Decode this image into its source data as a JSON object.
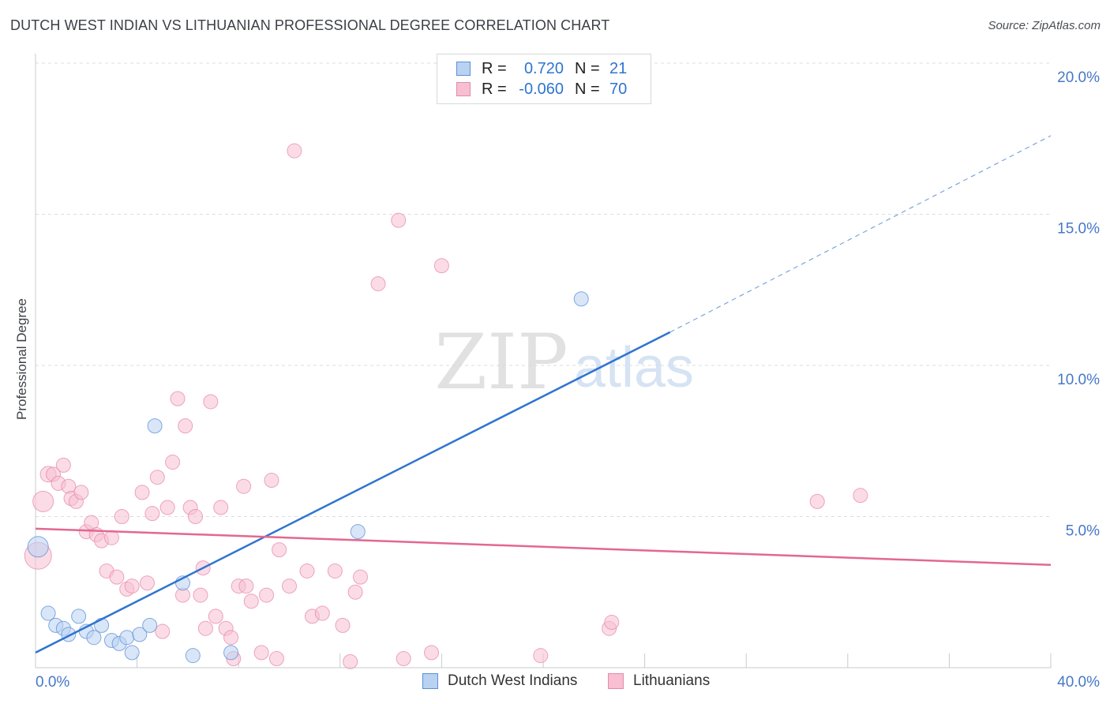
{
  "title": "DUTCH WEST INDIAN VS LITHUANIAN PROFESSIONAL DEGREE CORRELATION CHART",
  "source": "Source: ZipAtlas.com",
  "watermark": {
    "zip": "ZIP",
    "atlas": "atlas"
  },
  "colors": {
    "blue": "#2f74d0",
    "blue_fill": "#b9d2f2",
    "pink": "#e2688f",
    "pink_fill": "#f7bfd1",
    "axis_text": "#4678c8",
    "grid": "#dcdde0"
  },
  "legend": {
    "blue": {
      "r_label": "R =",
      "r_value": "0.720",
      "n_label": "N =",
      "n_value": "21"
    },
    "pink": {
      "r_label": "R =",
      "r_value": "-0.060",
      "n_label": "N =",
      "n_value": "70"
    }
  },
  "bottom_legend": [
    "Dutch West Indians",
    "Lithuanians"
  ],
  "chart_data": {
    "type": "scatter",
    "xlabel": "",
    "ylabel": "Professional Degree",
    "xlim": [
      0,
      40
    ],
    "ylim": [
      0,
      20
    ],
    "x_tick_labels": [
      "0.0%",
      "40.0%"
    ],
    "y_ticks": [
      5,
      10,
      15,
      20
    ],
    "y_tick_labels": [
      "5.0%",
      "10.0%",
      "15.0%",
      "20.0%"
    ],
    "grid": true,
    "series": [
      {
        "name": "Dutch West Indians",
        "color": "#2f74d0",
        "points": [
          [
            0.1,
            4.0,
            13
          ],
          [
            0.5,
            1.8,
            9
          ],
          [
            0.8,
            1.4,
            9
          ],
          [
            1.1,
            1.3,
            9
          ],
          [
            1.3,
            1.1,
            9
          ],
          [
            1.7,
            1.7,
            9
          ],
          [
            2.0,
            1.2,
            9
          ],
          [
            2.3,
            1.0,
            9
          ],
          [
            2.6,
            1.4,
            9
          ],
          [
            3.0,
            0.9,
            9
          ],
          [
            3.3,
            0.8,
            9
          ],
          [
            3.6,
            1.0,
            9
          ],
          [
            3.8,
            0.5,
            9
          ],
          [
            4.1,
            1.1,
            9
          ],
          [
            4.5,
            1.4,
            9
          ],
          [
            4.7,
            8.0,
            9
          ],
          [
            5.8,
            2.8,
            9
          ],
          [
            6.2,
            0.4,
            9
          ],
          [
            7.7,
            0.5,
            9
          ],
          [
            12.7,
            4.5,
            9
          ],
          [
            21.5,
            12.2,
            9
          ]
        ],
        "trend": {
          "x0": 0,
          "y0": 0.5,
          "x1": 25,
          "y1": 11.1,
          "dash_to_x": 40,
          "dash_to_y": 17.6
        }
      },
      {
        "name": "Lithuanians",
        "color": "#e2688f",
        "points": [
          [
            0.1,
            3.7,
            17
          ],
          [
            0.3,
            5.5,
            13
          ],
          [
            0.5,
            6.4,
            10
          ],
          [
            0.7,
            6.4,
            9
          ],
          [
            0.9,
            6.1,
            9
          ],
          [
            1.1,
            6.7,
            9
          ],
          [
            1.3,
            6.0,
            9
          ],
          [
            1.4,
            5.6,
            9
          ],
          [
            1.6,
            5.5,
            9
          ],
          [
            1.8,
            5.8,
            9
          ],
          [
            2.0,
            4.5,
            9
          ],
          [
            2.2,
            4.8,
            9
          ],
          [
            2.4,
            4.4,
            9
          ],
          [
            2.6,
            4.2,
            9
          ],
          [
            2.8,
            3.2,
            9
          ],
          [
            3.0,
            4.3,
            9
          ],
          [
            3.2,
            3.0,
            9
          ],
          [
            3.4,
            5.0,
            9
          ],
          [
            3.6,
            2.6,
            9
          ],
          [
            3.8,
            2.7,
            9
          ],
          [
            4.2,
            5.8,
            9
          ],
          [
            4.4,
            2.8,
            9
          ],
          [
            4.6,
            5.1,
            9
          ],
          [
            4.8,
            6.3,
            9
          ],
          [
            5.0,
            1.2,
            9
          ],
          [
            5.2,
            5.3,
            9
          ],
          [
            5.4,
            6.8,
            9
          ],
          [
            5.6,
            8.9,
            9
          ],
          [
            5.8,
            2.4,
            9
          ],
          [
            5.9,
            8.0,
            9
          ],
          [
            6.1,
            5.3,
            9
          ],
          [
            6.3,
            5.0,
            9
          ],
          [
            6.5,
            2.4,
            9
          ],
          [
            6.7,
            1.3,
            9
          ],
          [
            6.9,
            8.8,
            9
          ],
          [
            7.1,
            1.7,
            9
          ],
          [
            7.3,
            5.3,
            9
          ],
          [
            7.5,
            1.3,
            9
          ],
          [
            7.7,
            1.0,
            9
          ],
          [
            7.8,
            0.3,
            9
          ],
          [
            8.0,
            2.7,
            9
          ],
          [
            8.2,
            6.0,
            9
          ],
          [
            8.3,
            2.7,
            9
          ],
          [
            8.5,
            2.2,
            9
          ],
          [
            8.9,
            0.5,
            9
          ],
          [
            9.1,
            2.4,
            9
          ],
          [
            9.3,
            6.2,
            9
          ],
          [
            9.5,
            0.3,
            9
          ],
          [
            9.6,
            3.9,
            9
          ],
          [
            10.0,
            2.7,
            9
          ],
          [
            10.2,
            17.1,
            9
          ],
          [
            10.7,
            3.2,
            9
          ],
          [
            10.9,
            1.7,
            9
          ],
          [
            11.3,
            1.8,
            9
          ],
          [
            11.8,
            3.2,
            9
          ],
          [
            12.1,
            1.4,
            9
          ],
          [
            12.4,
            0.2,
            9
          ],
          [
            12.6,
            2.5,
            9
          ],
          [
            12.8,
            3.0,
            9
          ],
          [
            13.5,
            12.7,
            9
          ],
          [
            14.3,
            14.8,
            9
          ],
          [
            14.5,
            0.3,
            9
          ],
          [
            15.6,
            0.5,
            9
          ],
          [
            16.0,
            13.3,
            9
          ],
          [
            19.9,
            0.4,
            9
          ],
          [
            22.6,
            1.3,
            9
          ],
          [
            22.7,
            1.5,
            9
          ],
          [
            30.8,
            5.5,
            9
          ],
          [
            32.5,
            5.7,
            9
          ],
          [
            6.6,
            3.3,
            9
          ]
        ],
        "trend": {
          "x0": 0,
          "y0": 4.6,
          "x1": 40,
          "y1": 3.4
        }
      }
    ]
  }
}
